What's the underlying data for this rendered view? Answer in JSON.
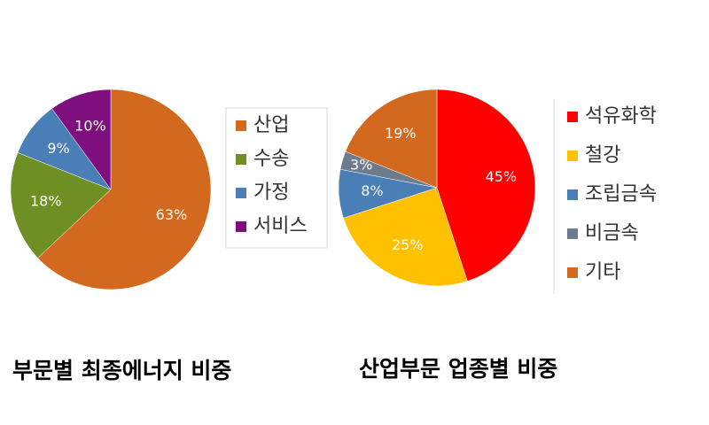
{
  "chart_data": [
    {
      "type": "pie",
      "title": "부문별 최종에너지 비중",
      "categories": [
        "산업",
        "수송",
        "가정",
        "서비스"
      ],
      "values": [
        63,
        18,
        9,
        10
      ],
      "value_labels": [
        "63%",
        "18%",
        "9%",
        "10%"
      ],
      "colors": [
        "#d2691e",
        "#6e8f24",
        "#4a7eb6",
        "#7f0f7f"
      ],
      "legend": "right"
    },
    {
      "type": "pie",
      "title": "산업부문 업종별 비중",
      "categories": [
        "석유화학",
        "철강",
        "조립금속",
        "비금속",
        "기타"
      ],
      "values": [
        45,
        25,
        8,
        3,
        19
      ],
      "value_labels": [
        "45%",
        "25%",
        "8%",
        "3%",
        "19%"
      ],
      "colors": [
        "#ff0000",
        "#ffc000",
        "#4a7eb6",
        "#6e7b8c",
        "#d2691e"
      ],
      "legend": "right"
    }
  ]
}
